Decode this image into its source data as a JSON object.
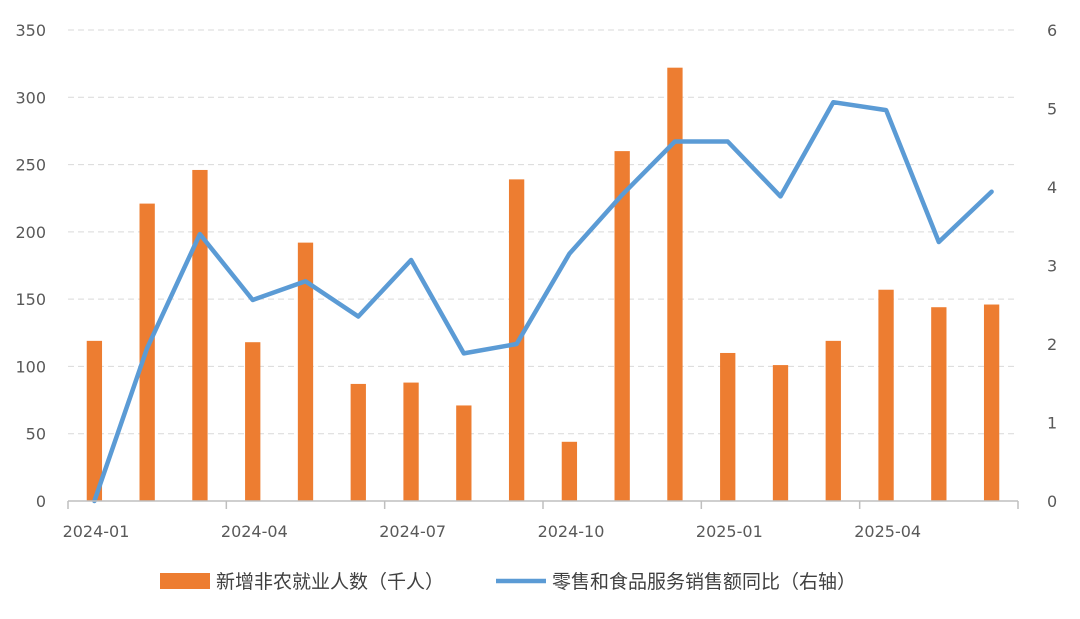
{
  "chart_data": {
    "type": "bar+line",
    "categories": [
      "2024-01",
      "2024-02",
      "2024-03",
      "2024-04",
      "2024-05",
      "2024-06",
      "2024-07",
      "2024-08",
      "2024-09",
      "2024-10",
      "2024-11",
      "2024-12",
      "2025-01",
      "2025-02",
      "2025-03",
      "2025-04",
      "2025-05",
      "2025-06"
    ],
    "x_tick_labels": [
      "2024-01",
      "2024-04",
      "2024-07",
      "2024-10",
      "2025-01",
      "2025-04"
    ],
    "series": [
      {
        "name": "新增非农就业人数（千人）",
        "type": "bar",
        "axis": "left",
        "color": "#ED7D31",
        "values": [
          119,
          221,
          246,
          118,
          192,
          87,
          88,
          71,
          239,
          44,
          260,
          322,
          110,
          101,
          119,
          157,
          144,
          146
        ]
      },
      {
        "name": "零售和食品服务销售额同比（右轴）",
        "type": "line",
        "axis": "right",
        "color": "#5B9BD5",
        "values": [
          0.0,
          1.95,
          3.4,
          2.56,
          2.8,
          2.35,
          3.07,
          1.88,
          2.0,
          3.15,
          3.9,
          4.58,
          4.58,
          3.88,
          5.08,
          4.98,
          3.3,
          3.94
        ]
      }
    ],
    "ylim_left": [
      0,
      350
    ],
    "yticks_left": [
      "0",
      "50",
      "100",
      "150",
      "200",
      "250",
      "300",
      "350"
    ],
    "ylim_right": [
      0,
      6
    ],
    "yticks_right": [
      "0",
      "1",
      "2",
      "3",
      "4",
      "5",
      "6"
    ],
    "grid": true,
    "legend": "bottom"
  }
}
